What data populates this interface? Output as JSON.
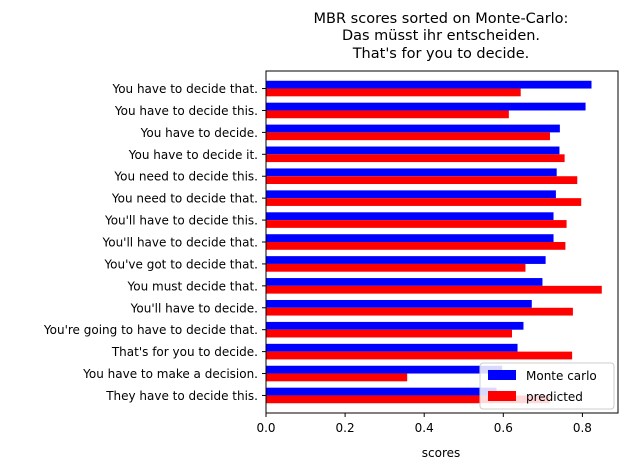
{
  "chart_data": {
    "type": "bar",
    "orientation": "horizontal",
    "title_lines": [
      "MBR scores sorted on Monte-Carlo:",
      "Das müsst ihr entscheiden.",
      "That's for you to decide."
    ],
    "xlabel": "scores",
    "ylabel": "",
    "xlim": [
      0.0,
      0.89
    ],
    "xticks": [
      "0.0",
      "0.2",
      "0.4",
      "0.6",
      "0.8"
    ],
    "categories": [
      "You have to decide that.",
      "You have to decide this.",
      "You have to decide.",
      "You have to decide it.",
      "You need to decide this.",
      "You need to decide that.",
      "You'll have to decide this.",
      "You'll have to decide that.",
      "You've got to decide that.",
      "You must decide that.",
      "You'll have to decide.",
      "You're going to have to decide that.",
      "That's for you to decide.",
      "You have to make a decision.",
      "They have to decide this."
    ],
    "series": [
      {
        "name": "Monte carlo",
        "color": "#0000ff",
        "values": [
          0.823,
          0.808,
          0.743,
          0.742,
          0.735,
          0.733,
          0.727,
          0.727,
          0.707,
          0.699,
          0.672,
          0.651,
          0.636,
          0.597,
          0.583
        ]
      },
      {
        "name": "predicted",
        "color": "#ff0000",
        "values": [
          0.644,
          0.614,
          0.718,
          0.755,
          0.787,
          0.797,
          0.76,
          0.757,
          0.656,
          0.849,
          0.776,
          0.622,
          0.774,
          0.357,
          0.717
        ]
      }
    ],
    "legend_position": "lower right",
    "grid": false
  }
}
